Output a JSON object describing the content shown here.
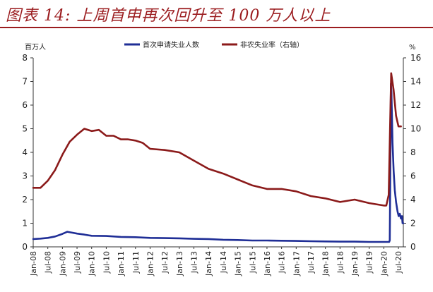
{
  "title": "图表 14:  上周首申再次回升至 100  万人以上",
  "colors": {
    "title": "#9b1c1f",
    "claims": "#1f2e96",
    "unemployment": "#8b1a1a",
    "axis": "#333333"
  },
  "chart_data": {
    "type": "line",
    "left_unit": "百万人",
    "right_unit": "%",
    "ylim_left": [
      0,
      8
    ],
    "ylim_right": [
      0,
      16
    ],
    "left_ticks": [
      "0",
      "1",
      "2",
      "3",
      "4",
      "5",
      "6",
      "7",
      "8"
    ],
    "right_ticks": [
      "0",
      "2",
      "4",
      "6",
      "8",
      "10",
      "12",
      "14",
      "16"
    ],
    "x_ticks": [
      "Jan-08",
      "Jul-08",
      "Jan-09",
      "Jul-09",
      "Jan-10",
      "Jul-10",
      "Jan-11",
      "Jul-11",
      "Jan-12",
      "Jul-12",
      "Jan-13",
      "Jul-13",
      "Jan-14",
      "Jul-14",
      "Jan-15",
      "Jul-15",
      "Jan-16",
      "Jul-16",
      "Jan-17",
      "Jul-17",
      "Jan-18",
      "Jul-18",
      "Jan-19",
      "Jul-19",
      "Jan-20",
      "Jul-20"
    ],
    "x_range": [
      "2008-01",
      "2020-09"
    ],
    "grid": false,
    "legend_position": "top-center",
    "series": [
      {
        "name": "首次申请失业人数",
        "axis": "left",
        "color": "#1f2e96",
        "points": [
          [
            "2008-01",
            0.33
          ],
          [
            "2008-04",
            0.35
          ],
          [
            "2008-07",
            0.38
          ],
          [
            "2008-10",
            0.44
          ],
          [
            "2009-01",
            0.55
          ],
          [
            "2009-03",
            0.64
          ],
          [
            "2009-05",
            0.6
          ],
          [
            "2009-07",
            0.56
          ],
          [
            "2009-10",
            0.52
          ],
          [
            "2010-01",
            0.47
          ],
          [
            "2010-07",
            0.46
          ],
          [
            "2011-01",
            0.42
          ],
          [
            "2011-07",
            0.41
          ],
          [
            "2012-01",
            0.38
          ],
          [
            "2012-07",
            0.37
          ],
          [
            "2013-01",
            0.36
          ],
          [
            "2013-07",
            0.34
          ],
          [
            "2014-01",
            0.33
          ],
          [
            "2014-07",
            0.3
          ],
          [
            "2015-01",
            0.29
          ],
          [
            "2015-07",
            0.27
          ],
          [
            "2016-01",
            0.27
          ],
          [
            "2016-07",
            0.26
          ],
          [
            "2017-01",
            0.25
          ],
          [
            "2017-07",
            0.24
          ],
          [
            "2018-01",
            0.23
          ],
          [
            "2018-07",
            0.22
          ],
          [
            "2019-01",
            0.22
          ],
          [
            "2019-07",
            0.21
          ],
          [
            "2020-01",
            0.21
          ],
          [
            "2020-02",
            0.21
          ],
          [
            "2020-03-07",
            0.21
          ],
          [
            "2020-03-14",
            0.28
          ],
          [
            "2020-03-21",
            3.3
          ],
          [
            "2020-03-28",
            6.9
          ],
          [
            "2020-04-04",
            6.6
          ],
          [
            "2020-04-18",
            4.4
          ],
          [
            "2020-05-02",
            3.2
          ],
          [
            "2020-05-16",
            2.4
          ],
          [
            "2020-06-01",
            1.9
          ],
          [
            "2020-06-20",
            1.5
          ],
          [
            "2020-07-04",
            1.3
          ],
          [
            "2020-07-18",
            1.4
          ],
          [
            "2020-08-01",
            1.2
          ],
          [
            "2020-08-15",
            1.3
          ],
          [
            "2020-08-22",
            1.0
          ],
          [
            "2020-09-01",
            1.0
          ]
        ]
      },
      {
        "name": "非农失业率（右轴）",
        "axis": "right",
        "color": "#8b1a1a",
        "points": [
          [
            "2008-01",
            5.0
          ],
          [
            "2008-04",
            5.0
          ],
          [
            "2008-07",
            5.6
          ],
          [
            "2008-10",
            6.5
          ],
          [
            "2009-01",
            7.8
          ],
          [
            "2009-04",
            8.9
          ],
          [
            "2009-07",
            9.5
          ],
          [
            "2009-10",
            10.0
          ],
          [
            "2010-01",
            9.8
          ],
          [
            "2010-04",
            9.9
          ],
          [
            "2010-07",
            9.4
          ],
          [
            "2010-10",
            9.4
          ],
          [
            "2011-01",
            9.1
          ],
          [
            "2011-04",
            9.1
          ],
          [
            "2011-07",
            9.0
          ],
          [
            "2011-10",
            8.8
          ],
          [
            "2012-01",
            8.3
          ],
          [
            "2012-07",
            8.2
          ],
          [
            "2013-01",
            8.0
          ],
          [
            "2013-07",
            7.3
          ],
          [
            "2014-01",
            6.6
          ],
          [
            "2014-07",
            6.2
          ],
          [
            "2015-01",
            5.7
          ],
          [
            "2015-07",
            5.2
          ],
          [
            "2016-01",
            4.9
          ],
          [
            "2016-07",
            4.9
          ],
          [
            "2017-01",
            4.7
          ],
          [
            "2017-07",
            4.3
          ],
          [
            "2018-01",
            4.1
          ],
          [
            "2018-07",
            3.8
          ],
          [
            "2019-01",
            4.0
          ],
          [
            "2019-07",
            3.7
          ],
          [
            "2020-01",
            3.5
          ],
          [
            "2020-02",
            3.5
          ],
          [
            "2020-03",
            4.4
          ],
          [
            "2020-04",
            14.7
          ],
          [
            "2020-05",
            13.3
          ],
          [
            "2020-06",
            11.1
          ],
          [
            "2020-07",
            10.2
          ],
          [
            "2020-08",
            10.2
          ]
        ]
      }
    ]
  }
}
